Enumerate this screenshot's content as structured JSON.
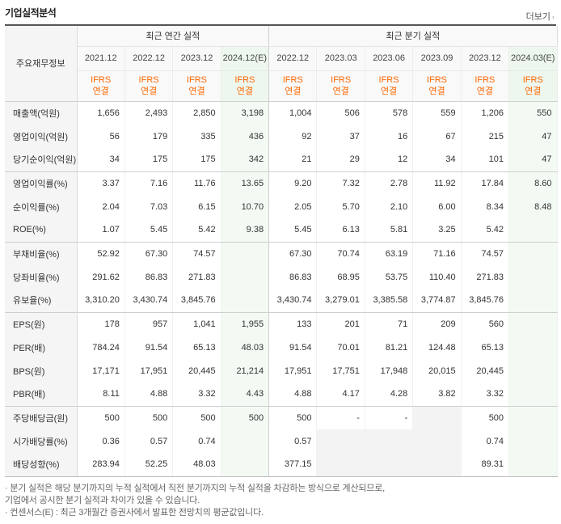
{
  "header": {
    "title": "기업실적분석",
    "more_label": "더보기",
    "more_arrow": "›"
  },
  "table": {
    "corner_label": "주요재무정보",
    "annual_label": "최근 연간 실적",
    "quarter_label": "최근 분기 실적",
    "annual_periods": [
      "2021.12",
      "2022.12",
      "2023.12",
      "2024.12(E)"
    ],
    "quarter_periods": [
      "2022.12",
      "2023.03",
      "2023.06",
      "2023.09",
      "2023.12",
      "2024.03(E)"
    ],
    "ifrs_line1": "IFRS",
    "ifrs_line2": "연결",
    "rows": [
      {
        "label": "매출액(억원)",
        "values": [
          "1,656",
          "2,493",
          "2,850",
          "3,198",
          "1,004",
          "506",
          "578",
          "559",
          "1,206",
          "550"
        ]
      },
      {
        "label": "영업이익(억원)",
        "values": [
          "56",
          "179",
          "335",
          "436",
          "92",
          "37",
          "16",
          "67",
          "215",
          "47"
        ]
      },
      {
        "label": "당기순이익(억원)",
        "values": [
          "34",
          "175",
          "175",
          "342",
          "21",
          "29",
          "12",
          "34",
          "101",
          "47"
        ]
      },
      {
        "label": "영업이익률(%)",
        "values": [
          "3.37",
          "7.16",
          "11.76",
          "13.65",
          "9.20",
          "7.32",
          "2.78",
          "11.92",
          "17.84",
          "8.60"
        ]
      },
      {
        "label": "순이익률(%)",
        "values": [
          "2.04",
          "7.03",
          "6.15",
          "10.70",
          "2.05",
          "5.70",
          "2.10",
          "6.00",
          "8.34",
          "8.48"
        ]
      },
      {
        "label": "ROE(%)",
        "values": [
          "1.07",
          "5.45",
          "5.42",
          "9.38",
          "5.45",
          "6.13",
          "5.81",
          "3.25",
          "5.42",
          ""
        ]
      },
      {
        "label": "부채비율(%)",
        "values": [
          "52.92",
          "67.30",
          "74.57",
          "",
          "67.30",
          "70.74",
          "63.19",
          "71.16",
          "74.57",
          ""
        ]
      },
      {
        "label": "당좌비율(%)",
        "values": [
          "291.62",
          "86.83",
          "271.83",
          "",
          "86.83",
          "68.95",
          "53.75",
          "110.40",
          "271.83",
          ""
        ]
      },
      {
        "label": "유보율(%)",
        "values": [
          "3,310.20",
          "3,430.74",
          "3,845.76",
          "",
          "3,430.74",
          "3,279.01",
          "3,385.58",
          "3,774.87",
          "3,845.76",
          ""
        ]
      },
      {
        "label": "EPS(원)",
        "values": [
          "178",
          "957",
          "1,041",
          "1,955",
          "133",
          "201",
          "71",
          "209",
          "560",
          ""
        ]
      },
      {
        "label": "PER(배)",
        "values": [
          "784.24",
          "91.54",
          "65.13",
          "48.03",
          "91.54",
          "70.01",
          "81.21",
          "124.48",
          "65.13",
          ""
        ]
      },
      {
        "label": "BPS(원)",
        "values": [
          "17,171",
          "17,951",
          "20,445",
          "21,214",
          "17,951",
          "17,751",
          "17,948",
          "20,015",
          "20,445",
          ""
        ]
      },
      {
        "label": "PBR(배)",
        "values": [
          "8.11",
          "4.88",
          "3.32",
          "4.43",
          "4.88",
          "4.17",
          "4.28",
          "3.82",
          "3.32",
          ""
        ]
      },
      {
        "label": "주당배당금(원)",
        "values": [
          "500",
          "500",
          "500",
          "500",
          "500",
          "-",
          "-",
          "",
          "500",
          ""
        ]
      },
      {
        "label": "시가배당률(%)",
        "values": [
          "0.36",
          "0.57",
          "0.74",
          "",
          "0.57",
          "",
          "",
          "",
          "0.74",
          ""
        ]
      },
      {
        "label": "배당성향(%)",
        "values": [
          "283.94",
          "52.25",
          "48.03",
          "",
          "377.15",
          "",
          "",
          "",
          "89.31",
          ""
        ]
      }
    ]
  },
  "notes": {
    "line1": "· 분기 실적은 해당 분기까지의 누적 실적에서 직전 분기까지의 누적 실적을 차감하는 방식으로 계산되므로,",
    "line2": "  기업에서 공시한 분기 실적과 차이가 있을 수 있습니다.",
    "line3": "· 컨센서스(E) : 최근 3개월간 증권사에서 발표한 전망치의 평균값입니다."
  }
}
